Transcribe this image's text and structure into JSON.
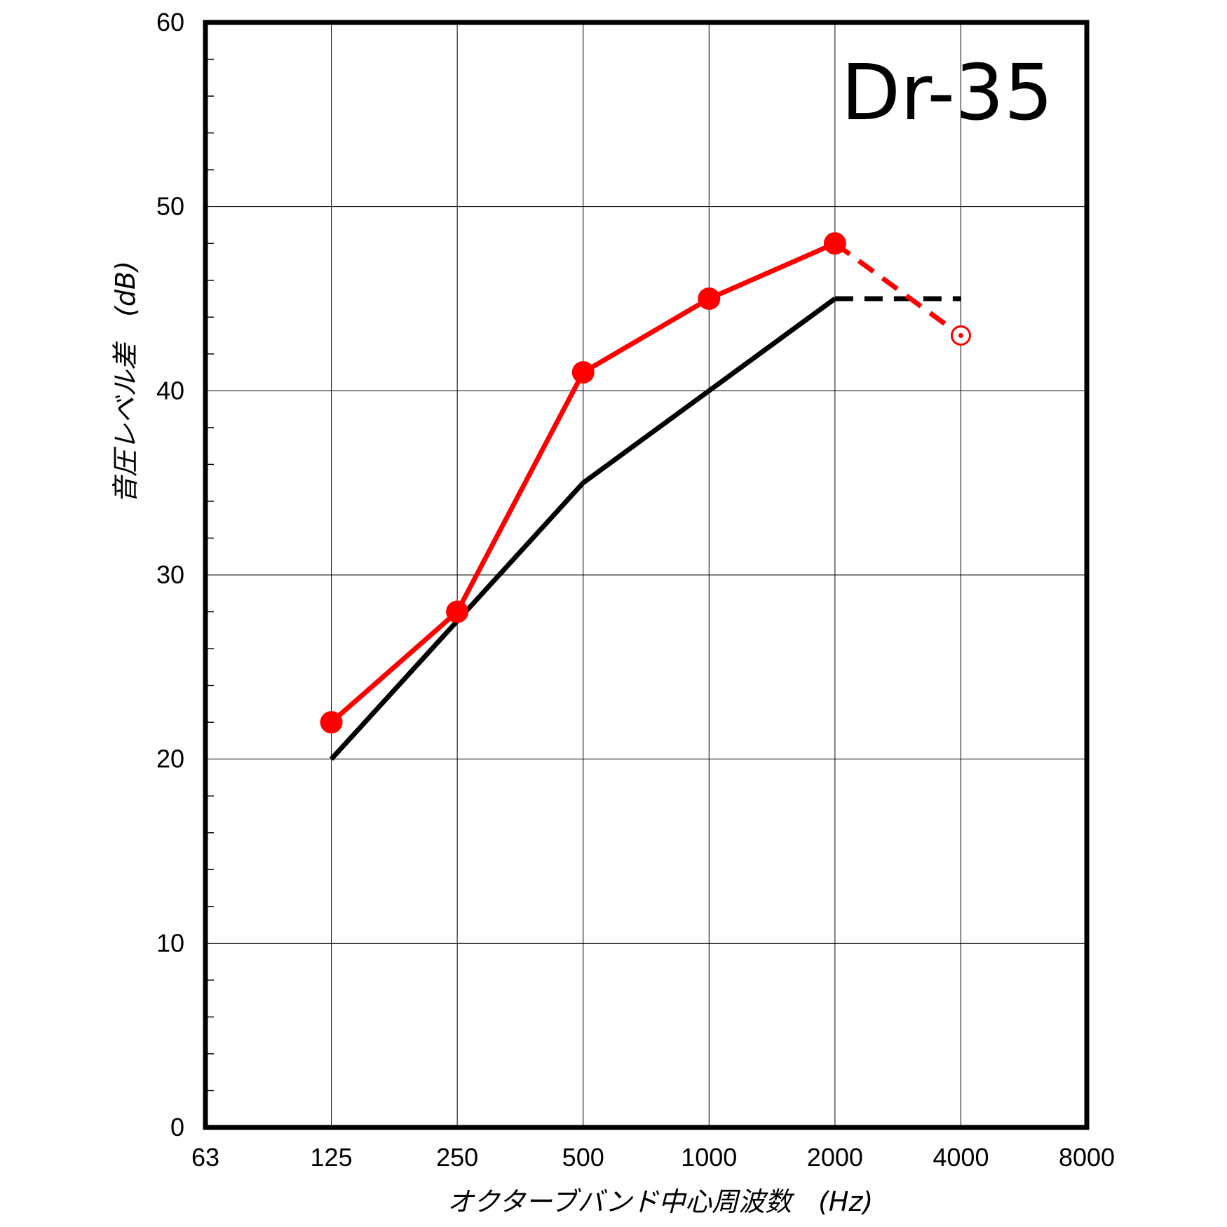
{
  "chart_data": {
    "type": "line",
    "title": "Dr-35",
    "xlabel": "オクターブバンド中心周波数　(Hz)",
    "ylabel": "音圧レベル差　(dB)",
    "x_scale": "log2",
    "categories": [
      "63",
      "125",
      "250",
      "500",
      "1000",
      "2000",
      "4000",
      "8000"
    ],
    "xlim": [
      63,
      8000
    ],
    "ylim": [
      0,
      60
    ],
    "yticks": [
      "0",
      "10",
      "20",
      "30",
      "40",
      "50",
      "60"
    ],
    "grid": true,
    "series": [
      {
        "color": "#ff0000",
        "marker": "filled-circle",
        "points": [
          {
            "x": "125",
            "y": 22
          },
          {
            "x": "250",
            "y": 28
          },
          {
            "x": "500",
            "y": 41
          },
          {
            "x": "1000",
            "y": 45
          },
          {
            "x": "2000",
            "y": 48
          }
        ]
      },
      {
        "color": "#ff0000",
        "line_style": "dashed",
        "points": [
          {
            "x": "2000",
            "y": 48
          },
          {
            "x": "4000",
            "y": 43
          }
        ],
        "end_marker": "open-circle-dot"
      },
      {
        "color": "#000000",
        "points": [
          {
            "x": "125",
            "y": 20
          },
          {
            "x": "250",
            "y": 27.5
          },
          {
            "x": "500",
            "y": 35
          },
          {
            "x": "1000",
            "y": 40
          },
          {
            "x": "2000",
            "y": 45
          }
        ]
      },
      {
        "color": "#000000",
        "line_style": "dashed",
        "points": [
          {
            "x": "2000",
            "y": 45
          },
          {
            "x": "4000",
            "y": 45
          }
        ]
      }
    ]
  }
}
